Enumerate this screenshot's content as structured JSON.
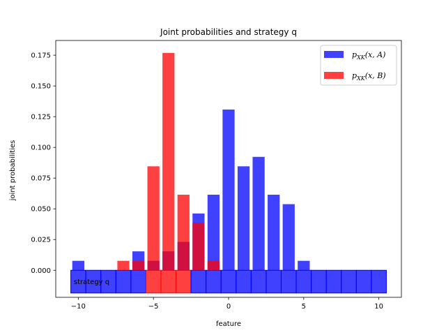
{
  "chart_data": {
    "type": "bar",
    "title": "Joint probabilities and strategy q",
    "xlabel": "feature",
    "ylabel": "joint probabilities",
    "xlim": [
      -11.5,
      11.5
    ],
    "ylim": [
      -0.022,
      0.187
    ],
    "xticks": [
      -10,
      -5,
      0,
      5,
      10
    ],
    "xtick_labels": [
      "−10",
      "−5",
      "0",
      "5",
      "10"
    ],
    "yticks": [
      0.0,
      0.025,
      0.05,
      0.075,
      0.1,
      0.125,
      0.15,
      0.175
    ],
    "ytick_labels": [
      "0.000",
      "0.025",
      "0.050",
      "0.075",
      "0.100",
      "0.125",
      "0.150",
      "0.175"
    ],
    "bar_width": 0.8,
    "legend_position": "upper right",
    "series": [
      {
        "name": "p_XK(x, A)",
        "legend_main": "p",
        "legend_sub": "XK",
        "legend_rest": "(x, A)",
        "color": "#0000ff",
        "alpha": 0.75,
        "x": [
          -10,
          -6,
          -5,
          -4,
          -3,
          -2,
          -1,
          0,
          1,
          2,
          3,
          4,
          5
        ],
        "values": [
          0.0077,
          0.0154,
          0.0077,
          0.0154,
          0.0231,
          0.0462,
          0.0615,
          0.1308,
          0.0846,
          0.0923,
          0.0615,
          0.0538,
          0.0077
        ]
      },
      {
        "name": "p_XK(x, B)",
        "legend_main": "p",
        "legend_sub": "XK",
        "legend_rest": "(x, B)",
        "color": "#ff0000",
        "alpha": 0.75,
        "x": [
          -7,
          -6,
          -5,
          -4,
          -3,
          -2,
          -1
        ],
        "values": [
          0.0077,
          0.0077,
          0.0846,
          0.1769,
          0.0615,
          0.0385,
          0.0077
        ]
      }
    ],
    "strategy_strip": {
      "label": "strategy q",
      "x": [
        -10,
        -9,
        -8,
        -7,
        -6,
        -5,
        -4,
        -3,
        -2,
        -1,
        0,
        1,
        2,
        3,
        4,
        5,
        6,
        7,
        8,
        9,
        10
      ],
      "choice": [
        "A",
        "A",
        "A",
        "A",
        "A",
        "B",
        "B",
        "B",
        "A",
        "A",
        "A",
        "A",
        "A",
        "A",
        "A",
        "A",
        "A",
        "A",
        "A",
        "A",
        "A"
      ],
      "y_bottom": -0.0185,
      "y_top": 0.0,
      "color_A": "#0000ff",
      "color_B": "#ff0000",
      "alpha": 0.75
    }
  }
}
